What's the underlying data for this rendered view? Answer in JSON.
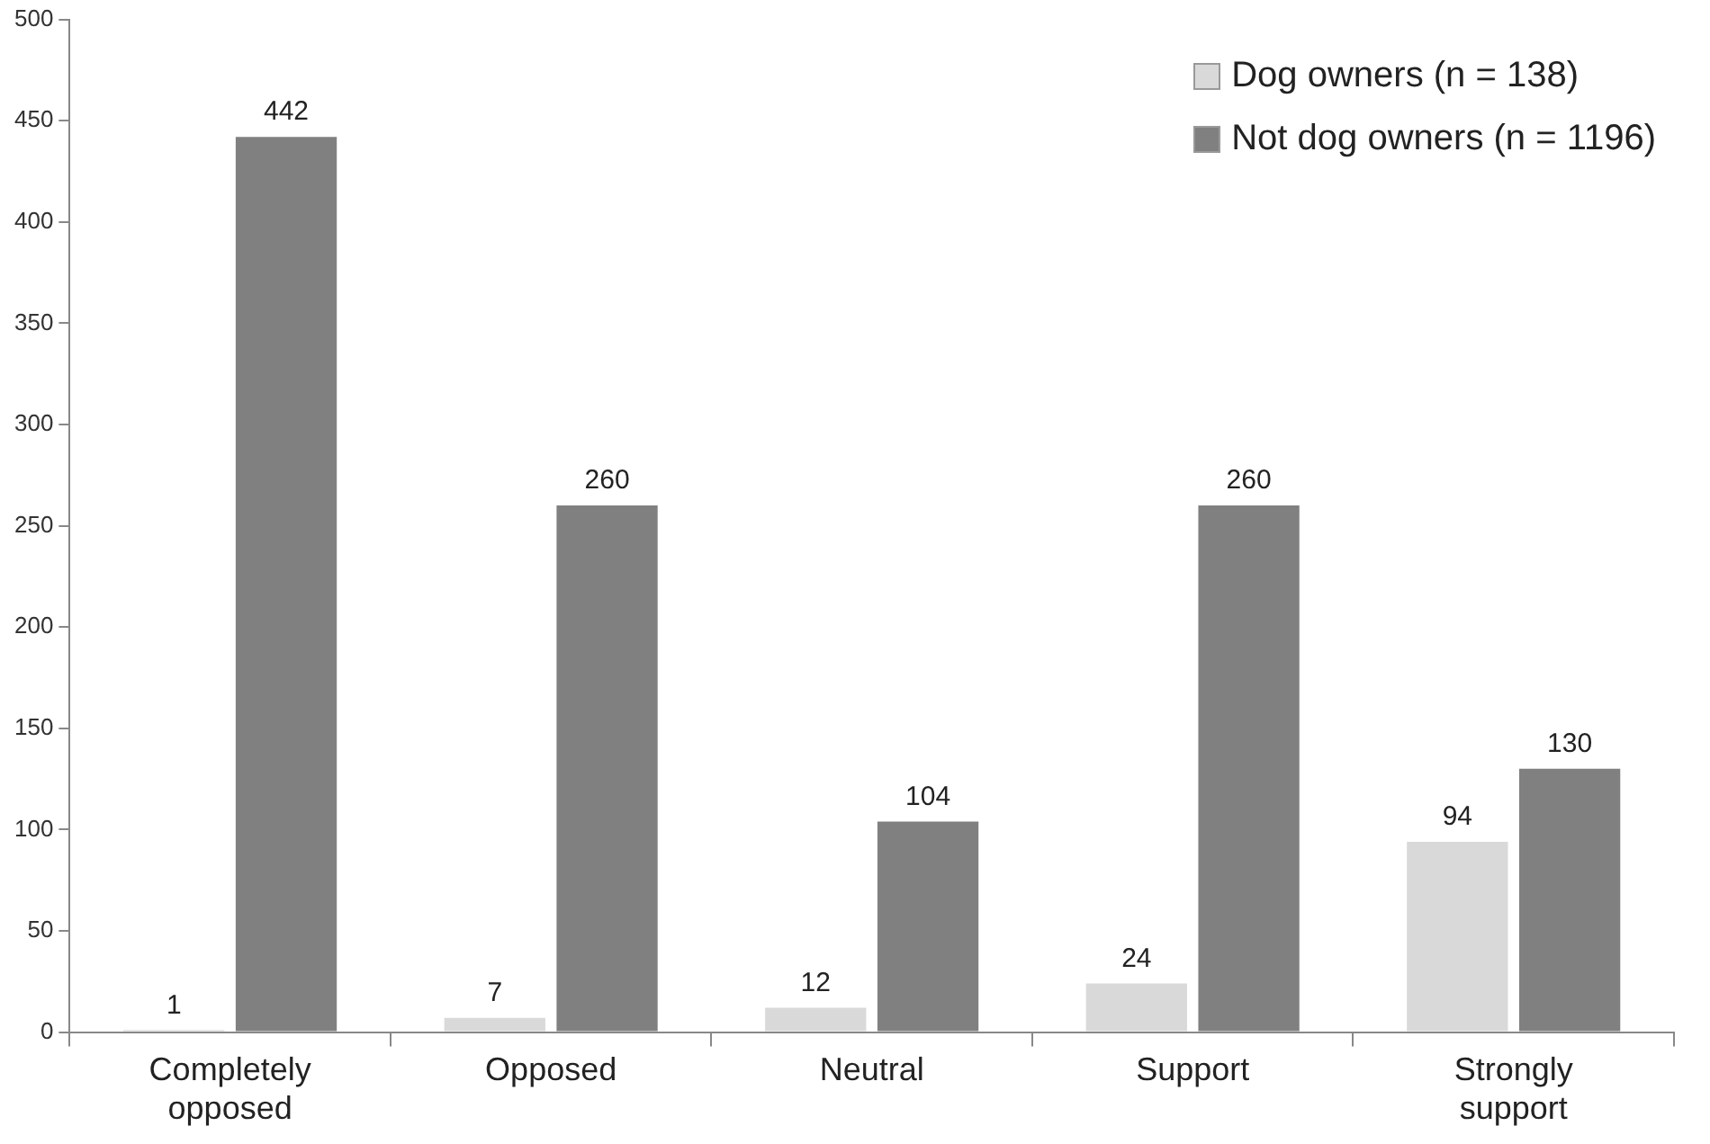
{
  "chart_data": {
    "type": "bar",
    "categories": [
      "Completely opposed",
      "Opposed",
      "Neutral",
      "Support",
      "Strongly support"
    ],
    "series": [
      {
        "name": "Dog owners (n = 138)",
        "color": "#d9d9d9",
        "values": [
          1,
          7,
          12,
          24,
          94
        ]
      },
      {
        "name": "Not dog owners (n = 1196)",
        "color": "#808080",
        "values": [
          442,
          260,
          104,
          260,
          130
        ]
      }
    ],
    "ylim": [
      0,
      500
    ],
    "yticks": [
      0,
      50,
      100,
      150,
      200,
      250,
      300,
      350,
      400,
      450,
      500
    ],
    "grid": false,
    "legend": "top right",
    "data_labels": true
  }
}
